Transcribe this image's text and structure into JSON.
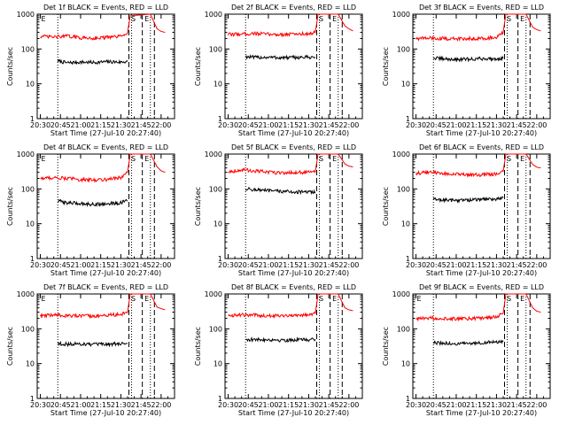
{
  "figure": {
    "start_time_label": "Start Time (27-Jul-10 20:27:40)",
    "ylabel": "Counts/sec",
    "colors": {
      "events": "#000000",
      "lld": "#ff0000",
      "axes": "#000000"
    }
  },
  "chart_data": [
    {
      "type": "line",
      "title": "Det 1f BLACK = Events, RED = LLD",
      "xlabel": "Start Time (27-Jul-10 20:27:40)",
      "ylabel": "Counts/sec",
      "yscale": "log",
      "ylim": [
        1,
        1000
      ],
      "y_ticks": [
        1,
        10,
        100,
        1000
      ],
      "x_ticks": [
        "20:30",
        "20:45",
        "21:00",
        "21:15",
        "21:30",
        "21:45",
        "22:00"
      ],
      "xlim": [
        "20:27:40",
        "22:10:00"
      ],
      "series": [
        {
          "name": "Events",
          "color": "black",
          "x": [
            "20:43",
            "20:50",
            "21:00",
            "21:10",
            "21:20",
            "21:30",
            "21:35"
          ],
          "y": [
            45,
            40,
            42,
            41,
            43,
            42,
            44
          ]
        },
        {
          "name": "LLD",
          "color": "red",
          "x": [
            "20:30",
            "20:40",
            "20:50",
            "21:00",
            "21:10",
            "21:20",
            "21:30",
            "21:35",
            "21:37",
            "21:52",
            "21:57",
            "22:00",
            "22:03"
          ],
          "y": [
            230,
            220,
            235,
            210,
            205,
            215,
            230,
            300,
            900,
            1000,
            380,
            320,
            300
          ]
        }
      ],
      "annotations": [
        {
          "text": "E",
          "x": "20:30"
        },
        {
          "text": "S",
          "x": "21:37"
        },
        {
          "text": "E",
          "x": "21:47"
        }
      ],
      "vlines_dotted": [
        "20:43",
        "21:38",
        "21:52"
      ],
      "vlines_dashed": [
        "21:36",
        "21:46",
        "21:55"
      ]
    },
    {
      "type": "line",
      "title": "Det 2f BLACK = Events, RED = LLD",
      "xlabel": "Start Time (27-Jul-10 20:27:40)",
      "ylabel": "Counts/sec",
      "yscale": "log",
      "ylim": [
        1,
        1000
      ],
      "y_ticks": [
        1,
        10,
        100,
        1000
      ],
      "x_ticks": [
        "20:30",
        "20:45",
        "21:00",
        "21:15",
        "21:30",
        "21:45",
        "22:00"
      ],
      "xlim": [
        "20:27:40",
        "22:10:00"
      ],
      "series": [
        {
          "name": "Events",
          "color": "black",
          "x": [
            "20:43",
            "20:50",
            "21:00",
            "21:10",
            "21:20",
            "21:30",
            "21:35"
          ],
          "y": [
            60,
            57,
            58,
            56,
            57,
            58,
            58
          ]
        },
        {
          "name": "LLD",
          "color": "red",
          "x": [
            "20:30",
            "20:40",
            "20:50",
            "21:00",
            "21:10",
            "21:20",
            "21:30",
            "21:35",
            "21:37",
            "21:52",
            "21:57",
            "22:00",
            "22:03"
          ],
          "y": [
            260,
            270,
            280,
            265,
            260,
            270,
            275,
            300,
            1000,
            1000,
            460,
            380,
            330
          ]
        }
      ],
      "annotations": [
        {
          "text": "S",
          "x": "21:37"
        },
        {
          "text": "E",
          "x": "21:47"
        }
      ],
      "vlines_dotted": [
        "20:43",
        "21:38",
        "21:52"
      ],
      "vlines_dashed": [
        "21:36",
        "21:46",
        "21:55"
      ]
    },
    {
      "type": "line",
      "title": "Det 3f BLACK = Events, RED = LLD",
      "xlabel": "Start Time (27-Jul-10 20:27:40)",
      "ylabel": "Counts/sec",
      "yscale": "log",
      "ylim": [
        1,
        1000
      ],
      "y_ticks": [
        1,
        10,
        100,
        1000
      ],
      "x_ticks": [
        "20:30",
        "20:45",
        "21:00",
        "21:15",
        "21:30",
        "21:45",
        "22:00"
      ],
      "xlim": [
        "20:27:40",
        "22:10:00"
      ],
      "series": [
        {
          "name": "Events",
          "color": "black",
          "x": [
            "20:43",
            "20:50",
            "21:00",
            "21:10",
            "21:20",
            "21:30",
            "21:35"
          ],
          "y": [
            55,
            52,
            50,
            51,
            53,
            52,
            54
          ]
        },
        {
          "name": "LLD",
          "color": "red",
          "x": [
            "20:30",
            "20:40",
            "20:50",
            "21:00",
            "21:10",
            "21:20",
            "21:30",
            "21:35",
            "21:37",
            "21:52",
            "21:57",
            "22:00",
            "22:03"
          ],
          "y": [
            200,
            205,
            200,
            195,
            200,
            205,
            210,
            300,
            1000,
            1000,
            420,
            360,
            330
          ]
        }
      ],
      "annotations": [
        {
          "text": "S",
          "x": "21:37"
        },
        {
          "text": "E",
          "x": "21:47"
        }
      ],
      "vlines_dotted": [
        "20:43",
        "21:38",
        "21:52"
      ],
      "vlines_dashed": [
        "21:36",
        "21:46",
        "21:55"
      ]
    },
    {
      "type": "line",
      "title": "Det 4f BLACK = Events, RED = LLD",
      "xlabel": "Start Time (27-Jul-10 20:27:40)",
      "ylabel": "Counts/sec",
      "yscale": "log",
      "ylim": [
        1,
        1000
      ],
      "y_ticks": [
        1,
        10,
        100,
        1000
      ],
      "x_ticks": [
        "20:30",
        "20:45",
        "21:00",
        "21:15",
        "21:30",
        "21:45",
        "22:00"
      ],
      "xlim": [
        "20:27:40",
        "22:10:00"
      ],
      "series": [
        {
          "name": "Events",
          "color": "black",
          "x": [
            "20:43",
            "20:50",
            "21:00",
            "21:10",
            "21:20",
            "21:30",
            "21:35"
          ],
          "y": [
            45,
            40,
            38,
            36,
            37,
            40,
            45
          ]
        },
        {
          "name": "LLD",
          "color": "red",
          "x": [
            "20:30",
            "20:40",
            "20:50",
            "21:00",
            "21:10",
            "21:20",
            "21:30",
            "21:35",
            "21:37",
            "21:52",
            "21:57",
            "22:00",
            "22:03"
          ],
          "y": [
            200,
            210,
            200,
            185,
            180,
            190,
            210,
            300,
            1000,
            1000,
            430,
            330,
            300
          ]
        }
      ],
      "annotations": [
        {
          "text": "E",
          "x": "20:30"
        },
        {
          "text": "S",
          "x": "21:37"
        },
        {
          "text": "E",
          "x": "21:47"
        }
      ],
      "vlines_dotted": [
        "20:43",
        "21:38",
        "21:52"
      ],
      "vlines_dashed": [
        "21:36",
        "21:46",
        "21:55"
      ]
    },
    {
      "type": "line",
      "title": "Det 5f BLACK = Events, RED = LLD",
      "xlabel": "Start Time (27-Jul-10 20:27:40)",
      "ylabel": "Counts/sec",
      "yscale": "log",
      "ylim": [
        1,
        1000
      ],
      "y_ticks": [
        1,
        10,
        100,
        1000
      ],
      "x_ticks": [
        "20:30",
        "20:45",
        "21:00",
        "21:15",
        "21:30",
        "21:45",
        "22:00"
      ],
      "xlim": [
        "20:27:40",
        "22:10:00"
      ],
      "series": [
        {
          "name": "Events",
          "color": "black",
          "x": [
            "20:43",
            "20:50",
            "21:00",
            "21:10",
            "21:20",
            "21:30",
            "21:35"
          ],
          "y": [
            100,
            95,
            88,
            85,
            82,
            80,
            82
          ]
        },
        {
          "name": "LLD",
          "color": "red",
          "x": [
            "20:30",
            "20:40",
            "20:50",
            "21:00",
            "21:10",
            "21:20",
            "21:30",
            "21:35",
            "21:37",
            "21:52",
            "21:57",
            "22:00",
            "22:03"
          ],
          "y": [
            310,
            350,
            330,
            300,
            290,
            295,
            300,
            320,
            1000,
            1000,
            520,
            450,
            430
          ]
        }
      ],
      "annotations": [
        {
          "text": "S",
          "x": "21:37"
        },
        {
          "text": "E",
          "x": "21:47"
        }
      ],
      "vlines_dotted": [
        "20:43",
        "21:38",
        "21:52"
      ],
      "vlines_dashed": [
        "21:36",
        "21:46",
        "21:55"
      ]
    },
    {
      "type": "line",
      "title": "Det 6f BLACK = Events, RED = LLD",
      "xlabel": "Start Time (27-Jul-10 20:27:40)",
      "ylabel": "Counts/sec",
      "yscale": "log",
      "ylim": [
        1,
        1000
      ],
      "y_ticks": [
        1,
        10,
        100,
        1000
      ],
      "x_ticks": [
        "20:30",
        "20:45",
        "21:00",
        "21:15",
        "21:30",
        "21:45",
        "22:00"
      ],
      "xlim": [
        "20:27:40",
        "22:10:00"
      ],
      "series": [
        {
          "name": "Events",
          "color": "black",
          "x": [
            "20:43",
            "20:50",
            "21:00",
            "21:10",
            "21:20",
            "21:30",
            "21:35"
          ],
          "y": [
            50,
            48,
            47,
            48,
            50,
            52,
            55
          ]
        },
        {
          "name": "LLD",
          "color": "red",
          "x": [
            "20:30",
            "20:40",
            "20:50",
            "21:00",
            "21:10",
            "21:20",
            "21:30",
            "21:35",
            "21:37",
            "21:52",
            "21:57",
            "22:00",
            "22:03"
          ],
          "y": [
            280,
            300,
            280,
            260,
            250,
            255,
            270,
            320,
            1000,
            1000,
            500,
            420,
            400
          ]
        }
      ],
      "annotations": [
        {
          "text": "S",
          "x": "21:37"
        },
        {
          "text": "E",
          "x": "21:47"
        }
      ],
      "vlines_dotted": [
        "20:43",
        "21:38",
        "21:52"
      ],
      "vlines_dashed": [
        "21:36",
        "21:46",
        "21:55"
      ]
    },
    {
      "type": "line",
      "title": "Det 7f BLACK = Events, RED = LLD",
      "xlabel": "Start Time (27-Jul-10 20:27:40)",
      "ylabel": "Counts/sec",
      "yscale": "log",
      "ylim": [
        1,
        1000
      ],
      "y_ticks": [
        1,
        10,
        100,
        1000
      ],
      "x_ticks": [
        "20:30",
        "20:45",
        "21:00",
        "21:15",
        "21:30",
        "21:45",
        "22:00"
      ],
      "xlim": [
        "20:27:40",
        "22:10:00"
      ],
      "series": [
        {
          "name": "Events",
          "color": "black",
          "x": [
            "20:43",
            "20:50",
            "21:00",
            "21:10",
            "21:20",
            "21:30",
            "21:35"
          ],
          "y": [
            38,
            36,
            37,
            35,
            36,
            37,
            38
          ]
        },
        {
          "name": "LLD",
          "color": "red",
          "x": [
            "20:30",
            "20:40",
            "20:50",
            "21:00",
            "21:10",
            "21:20",
            "21:30",
            "21:35",
            "21:37",
            "21:52",
            "21:57",
            "22:00",
            "22:03"
          ],
          "y": [
            230,
            250,
            240,
            230,
            235,
            245,
            260,
            300,
            1000,
            1000,
            420,
            380,
            350
          ]
        }
      ],
      "annotations": [
        {
          "text": "E",
          "x": "20:30"
        },
        {
          "text": "S",
          "x": "21:37"
        },
        {
          "text": "E",
          "x": "21:47"
        }
      ],
      "vlines_dotted": [
        "20:43",
        "21:38",
        "21:52"
      ],
      "vlines_dashed": [
        "21:36",
        "21:46",
        "21:55"
      ]
    },
    {
      "type": "line",
      "title": "Det 8f BLACK = Events, RED = LLD",
      "xlabel": "Start Time (27-Jul-10 20:27:40)",
      "ylabel": "Counts/sec",
      "yscale": "log",
      "ylim": [
        1,
        1000
      ],
      "y_ticks": [
        1,
        10,
        100,
        1000
      ],
      "x_ticks": [
        "20:30",
        "20:45",
        "21:00",
        "21:15",
        "21:30",
        "21:45",
        "22:00"
      ],
      "xlim": [
        "20:27:40",
        "22:10:00"
      ],
      "series": [
        {
          "name": "Events",
          "color": "black",
          "x": [
            "20:43",
            "20:50",
            "21:00",
            "21:10",
            "21:20",
            "21:30",
            "21:35"
          ],
          "y": [
            50,
            48,
            49,
            47,
            48,
            49,
            50
          ]
        },
        {
          "name": "LLD",
          "color": "red",
          "x": [
            "20:30",
            "20:40",
            "20:50",
            "21:00",
            "21:10",
            "21:20",
            "21:30",
            "21:35",
            "21:37",
            "21:52",
            "21:57",
            "22:00",
            "22:03"
          ],
          "y": [
            240,
            250,
            245,
            240,
            240,
            245,
            250,
            280,
            1000,
            1000,
            400,
            350,
            330
          ]
        }
      ],
      "annotations": [
        {
          "text": "S",
          "x": "21:37"
        },
        {
          "text": "E",
          "x": "21:47"
        }
      ],
      "vlines_dotted": [
        "20:43",
        "21:38",
        "21:52"
      ],
      "vlines_dashed": [
        "21:36",
        "21:46",
        "21:55"
      ]
    },
    {
      "type": "line",
      "title": "Det 9f BLACK = Events, RED = LLD",
      "xlabel": "Start Time (27-Jul-10 20:27:40)",
      "ylabel": "Counts/sec",
      "yscale": "log",
      "ylim": [
        1,
        1000
      ],
      "y_ticks": [
        1,
        10,
        100,
        1000
      ],
      "x_ticks": [
        "20:30",
        "20:45",
        "21:00",
        "21:15",
        "21:30",
        "21:45",
        "22:00"
      ],
      "xlim": [
        "20:27:40",
        "22:10:00"
      ],
      "series": [
        {
          "name": "Events",
          "color": "black",
          "x": [
            "20:43",
            "20:50",
            "21:00",
            "21:10",
            "21:20",
            "21:30",
            "21:35"
          ],
          "y": [
            40,
            38,
            37,
            38,
            40,
            42,
            43
          ]
        },
        {
          "name": "LLD",
          "color": "red",
          "x": [
            "20:30",
            "20:40",
            "20:50",
            "21:00",
            "21:10",
            "21:20",
            "21:30",
            "21:35",
            "21:37",
            "21:52",
            "21:57",
            "22:00",
            "22:03"
          ],
          "y": [
            190,
            205,
            200,
            195,
            195,
            200,
            220,
            280,
            1000,
            1000,
            400,
            320,
            300
          ]
        }
      ],
      "annotations": [
        {
          "text": "E",
          "x": "20:30"
        },
        {
          "text": "S",
          "x": "21:37"
        },
        {
          "text": "E",
          "x": "21:47"
        }
      ],
      "vlines_dotted": [
        "20:43",
        "21:38",
        "21:52"
      ],
      "vlines_dashed": [
        "21:36",
        "21:46",
        "21:55"
      ]
    }
  ]
}
